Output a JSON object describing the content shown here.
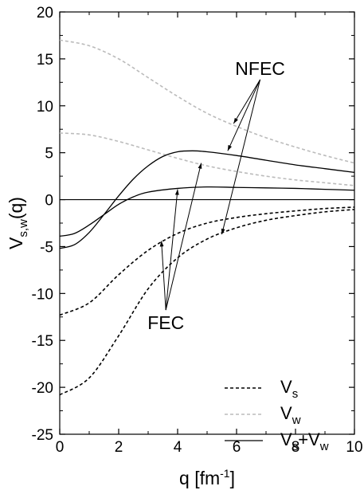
{
  "chart_data": {
    "type": "line",
    "xlabel": "q [fm",
    "xlabel_sup": "-1",
    "xlabel_end": "]",
    "ylabel_main": "V",
    "ylabel_sub": "s,w",
    "ylabel_end": "(q)",
    "xlim": [
      0,
      10
    ],
    "ylim": [
      -25,
      20
    ],
    "x_ticks": [
      0,
      2,
      4,
      6,
      8,
      10
    ],
    "y_ticks": [
      20,
      15,
      10,
      5,
      0,
      -5,
      -10,
      -15,
      -20,
      -25
    ],
    "zero_line": true,
    "legend_position": "bottom-right",
    "legend": [
      {
        "main": "V",
        "sub": "s",
        "style": "dashed",
        "color": "#000000"
      },
      {
        "main": "V",
        "sub": "w",
        "style": "dashed",
        "color": "#bbbbbb"
      },
      {
        "main": "V",
        "sub": "s",
        "plus": "+V",
        "sub2": "w",
        "style": "solid",
        "color": "#000000"
      }
    ],
    "series": [
      {
        "label_group": "NFEC",
        "kind": "Vs",
        "style": "dashed",
        "color": "#000000",
        "x": [
          0,
          1,
          2,
          3,
          4,
          5,
          6,
          7,
          8,
          9,
          10
        ],
        "y": [
          -12.3,
          -11.0,
          -8.0,
          -5.4,
          -3.6,
          -2.5,
          -1.9,
          -1.5,
          -1.2,
          -0.95,
          -0.8
        ]
      },
      {
        "label_group": "FEC",
        "kind": "Vs",
        "style": "dashed",
        "color": "#000000",
        "x": [
          0,
          1,
          2,
          3,
          4,
          5,
          6,
          7,
          8,
          9,
          10
        ],
        "y": [
          -20.8,
          -19.0,
          -14.5,
          -9.5,
          -6.2,
          -4.2,
          -3.0,
          -2.2,
          -1.7,
          -1.3,
          -1.05
        ]
      },
      {
        "label_group": "NFEC",
        "kind": "Vw",
        "style": "dashed",
        "color": "#bbbbbb",
        "x": [
          0,
          1,
          2,
          3,
          4,
          5,
          6,
          7,
          8,
          9,
          10
        ],
        "y": [
          17.0,
          16.4,
          15.0,
          13.0,
          11.0,
          9.2,
          7.8,
          6.6,
          5.6,
          4.7,
          3.9
        ]
      },
      {
        "label_group": "FEC",
        "kind": "Vw",
        "style": "dashed",
        "color": "#bbbbbb",
        "x": [
          0,
          1,
          2,
          3,
          4,
          5,
          6,
          7,
          8,
          9,
          10
        ],
        "y": [
          7.1,
          6.9,
          6.2,
          5.3,
          4.4,
          3.6,
          3.0,
          2.5,
          2.1,
          1.8,
          1.5
        ]
      },
      {
        "label_group": "NFEC",
        "kind": "Vs+Vw",
        "style": "solid",
        "color": "#000000",
        "x": [
          0,
          0.5,
          1,
          1.5,
          2,
          2.5,
          3,
          3.5,
          4,
          4.5,
          5,
          6,
          7,
          8,
          9,
          10
        ],
        "y": [
          -5.2,
          -4.8,
          -3.5,
          -1.6,
          0.4,
          2.2,
          3.6,
          4.6,
          5.1,
          5.2,
          5.1,
          4.7,
          4.2,
          3.7,
          3.3,
          2.9
        ]
      },
      {
        "label_group": "FEC",
        "kind": "Vs+Vw",
        "style": "solid",
        "color": "#000000",
        "x": [
          0,
          0.5,
          1,
          1.5,
          2,
          2.5,
          3,
          4,
          5,
          6,
          7,
          8,
          9,
          10
        ],
        "y": [
          -3.9,
          -3.6,
          -2.7,
          -1.6,
          -0.5,
          0.3,
          0.8,
          1.2,
          1.35,
          1.3,
          1.25,
          1.2,
          1.1,
          1.0
        ]
      }
    ],
    "annotations": [
      {
        "text": "NFEC",
        "text_x": 6.8,
        "text_y": 13.3,
        "arrows": [
          [
            5.9,
            8.1
          ],
          [
            5.7,
            5.2
          ],
          [
            5.5,
            -3.7
          ]
        ]
      },
      {
        "text": "FEC",
        "text_x": 3.6,
        "text_y": -13.8,
        "arrows": [
          [
            3.45,
            -4.4
          ],
          [
            4.0,
            1.1
          ],
          [
            4.8,
            3.9
          ]
        ]
      }
    ]
  }
}
